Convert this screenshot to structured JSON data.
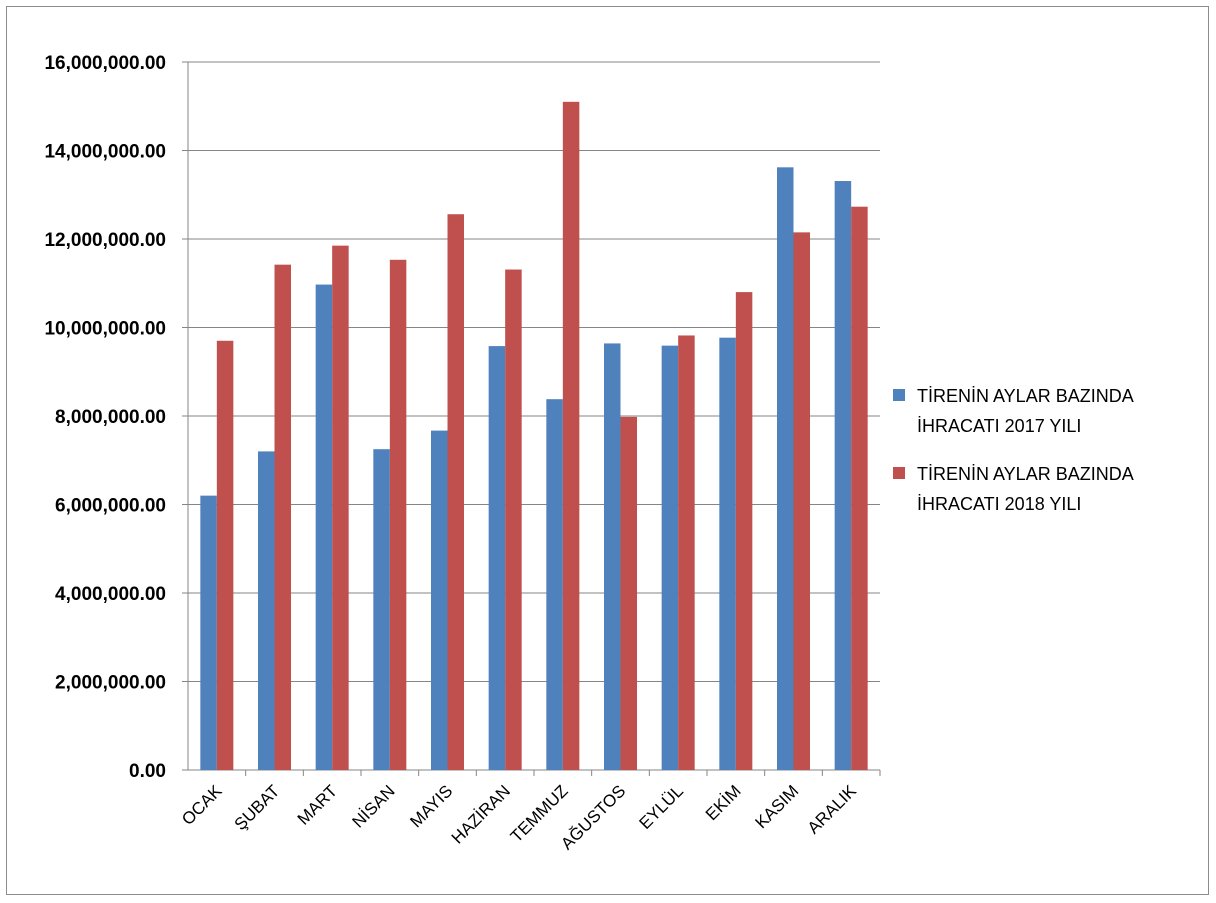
{
  "chart_data": {
    "type": "bar",
    "categories": [
      "OCAK",
      "ŞUBAT",
      "MART",
      "NİSAN",
      "MAYIS",
      "HAZİRAN",
      "TEMMUZ",
      "AĞUSTOS",
      "EYLÜL",
      "EKİM",
      "KASIM",
      "ARALIK"
    ],
    "series": [
      {
        "name": "TİRENİN AYLAR BAZINDA İHRACATI  2017 YILI",
        "legend_lines": [
          "TİRENİN AYLAR BAZINDA",
          "İHRACATI  2017 YILI"
        ],
        "color": "#4f81bd",
        "values": [
          6200000,
          7200000,
          10970000,
          7250000,
          7670000,
          9580000,
          8380000,
          9640000,
          9590000,
          9770000,
          13620000,
          13310000
        ]
      },
      {
        "name": "TİRENİN AYLAR BAZINDA İHRACATI  2018 YILI",
        "legend_lines": [
          "TİRENİN AYLAR BAZINDA",
          "İHRACATI  2018 YILI"
        ],
        "color": "#c0504d",
        "values": [
          9700000,
          11420000,
          11850000,
          11530000,
          12560000,
          11310000,
          15100000,
          7980000,
          9820000,
          10800000,
          12150000,
          12730000
        ]
      }
    ],
    "yticks": [
      "0.00",
      "2,000,000.00",
      "4,000,000.00",
      "6,000,000.00",
      "8,000,000.00",
      "10,000,000.00",
      "12,000,000.00",
      "14,000,000.00",
      "16,000,000.00"
    ],
    "ylim": [
      0,
      16000000
    ],
    "ytick_step": 2000000,
    "grid": true,
    "legend_position": "right",
    "title": "",
    "xlabel": "",
    "ylabel": ""
  }
}
